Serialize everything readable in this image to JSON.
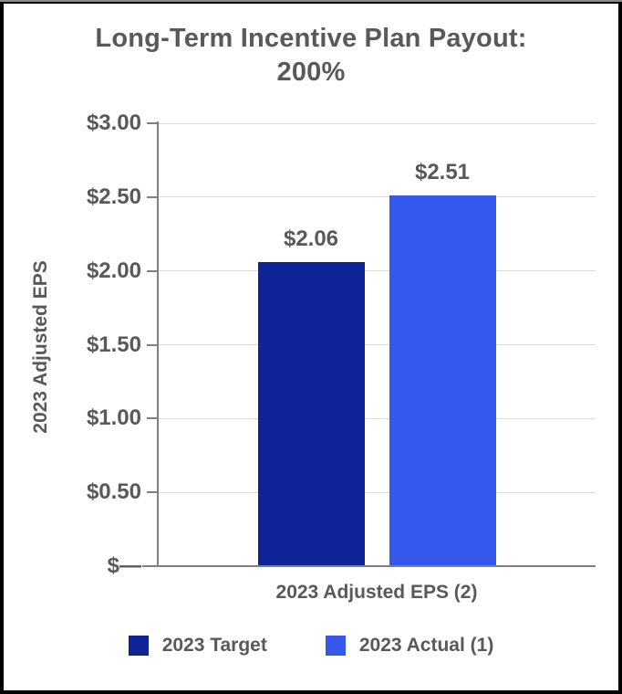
{
  "chart_data": {
    "type": "bar",
    "title": "Long-Term Incentive Plan Payout: 200%",
    "title_lines": [
      "Long-Term Incentive Plan Payout:",
      "200%"
    ],
    "categories": [
      "2023 Adjusted EPS (2)"
    ],
    "series": [
      {
        "name": "2023 Target",
        "values": [
          2.06
        ],
        "display_value": "$2.06",
        "color": "#0e2396"
      },
      {
        "name": "2023 Actual (1)",
        "values": [
          2.51
        ],
        "display_value": "$2.51",
        "color": "#3557ec"
      }
    ],
    "xlabel": "2023 Adjusted EPS (2)",
    "ylabel": "2023 Adjusted EPS",
    "ylim": [
      0,
      3.0
    ],
    "ytick_step": 0.5,
    "ytick_labels": [
      "$—",
      "$0.50",
      "$1.00",
      "$1.50",
      "$2.00",
      "$2.50",
      "$3.00"
    ],
    "grid": true,
    "legend_position": "bottom"
  },
  "colors": {
    "text": "#595959",
    "gridline": "#d9d9d9",
    "axis": "#808080",
    "frame": "#000000",
    "background": "#ffffff",
    "target_bar": "#0e2396",
    "actual_bar": "#3557ec"
  }
}
